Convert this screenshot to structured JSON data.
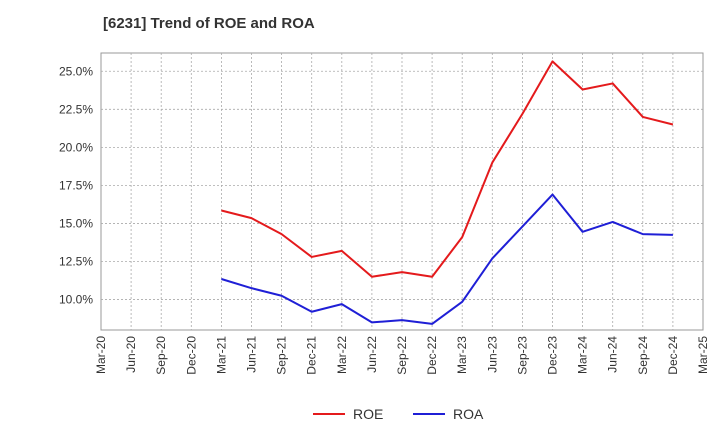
{
  "chart_data": {
    "type": "line",
    "title": "[6231]  Trend of ROE and ROA",
    "xlabel": "",
    "ylabel": "",
    "x_ticks": [
      "Mar-20",
      "Jun-20",
      "Sep-20",
      "Dec-20",
      "Mar-21",
      "Jun-21",
      "Sep-21",
      "Dec-21",
      "Mar-22",
      "Jun-22",
      "Sep-22",
      "Dec-22",
      "Mar-23",
      "Jun-23",
      "Sep-23",
      "Dec-23",
      "Mar-24",
      "Jun-24",
      "Sep-24",
      "Dec-24",
      "Mar-25"
    ],
    "y_ticks": [
      "10.0%",
      "12.5%",
      "15.0%",
      "17.5%",
      "20.0%",
      "22.5%",
      "25.0%"
    ],
    "ylim": [
      8.0,
      26.2
    ],
    "grid": true,
    "legend_position": "bottom-center",
    "categories": [
      "Mar-21",
      "Jun-21",
      "Sep-21",
      "Dec-21",
      "Mar-22",
      "Jun-22",
      "Sep-22",
      "Dec-22",
      "Mar-23",
      "Jun-23",
      "Sep-23",
      "Dec-23",
      "Mar-24",
      "Jun-24",
      "Sep-24",
      "Dec-24"
    ],
    "series": [
      {
        "name": "ROE",
        "color": "#e41a1c",
        "values": [
          15.85,
          15.35,
          14.3,
          12.8,
          13.2,
          11.5,
          11.8,
          11.5,
          14.1,
          19.0,
          22.2,
          25.65,
          23.8,
          24.2,
          22.0,
          21.5
        ]
      },
      {
        "name": "ROA",
        "color": "#1f1fd6",
        "values": [
          11.35,
          10.75,
          10.25,
          9.2,
          9.7,
          8.5,
          8.65,
          8.4,
          9.85,
          12.7,
          14.8,
          16.9,
          14.45,
          15.1,
          14.3,
          14.25
        ]
      }
    ]
  }
}
